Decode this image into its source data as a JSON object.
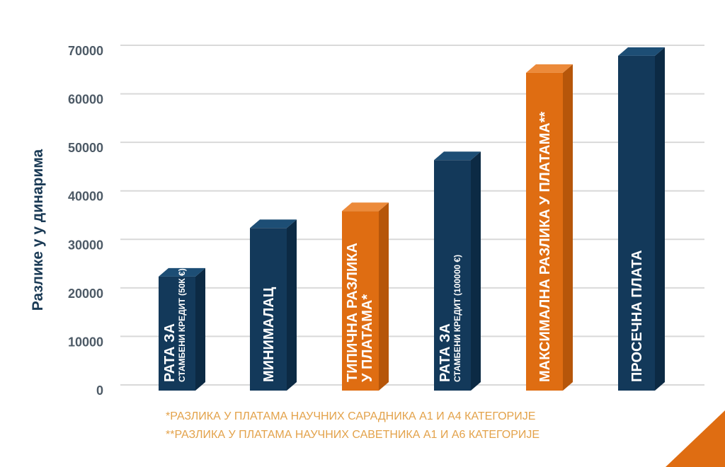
{
  "colors": {
    "navy": "#13395a",
    "navy_dark": "#0c2a44",
    "navy_top": "#1d4e75",
    "orange": "#df6d12",
    "orange_dark": "#b6560a",
    "orange_top": "#ec8a3a",
    "gridline": "#d9d9d9",
    "footnote": "#e3a24a",
    "corner_accent": "#df6d12"
  },
  "chart_data": {
    "type": "bar",
    "ylabel": "Разлике у  у динарима",
    "xlabel": "",
    "ylim": [
      0,
      70000
    ],
    "yticks": [
      0,
      10000,
      20000,
      30000,
      40000,
      50000,
      60000,
      70000
    ],
    "grid": true,
    "categories": [
      {
        "lines": [
          "РАТА ЗА",
          "СТАМБЕНИ КРЕДИТ (50К €)"
        ],
        "value": 23500,
        "color": "navy"
      },
      {
        "lines": [
          "МИНИМАЛАЦ"
        ],
        "value": 33500,
        "color": "navy"
      },
      {
        "lines": [
          "ТИПИЧНА РАЗЛИКА",
          "У ПЛАТАМА*"
        ],
        "value": 37000,
        "color": "orange"
      },
      {
        "lines": [
          "РАТА ЗА",
          "СТАМБЕНИ КРЕДИТ (100000 €)"
        ],
        "value": 47500,
        "color": "navy"
      },
      {
        "lines": [
          "МАКСИМАЛНА РАЗЛИКА У ПЛАТАМА**"
        ],
        "value": 65500,
        "color": "orange"
      },
      {
        "lines": [
          "ПРОСЕЧНА ПЛАТА"
        ],
        "value": 69000,
        "color": "navy"
      }
    ]
  },
  "footnotes": [
    "*РАЗЛИКА У ПЛАТАМА НАУЧНИХ САРАДНИКА А1 И А4 КАТЕГОРИЈЕ",
    "**РАЗЛИКА У ПЛАТАМА НАУЧНИХ САВЕТНИКА А1 И А6 КАТЕГОРИЈЕ"
  ]
}
